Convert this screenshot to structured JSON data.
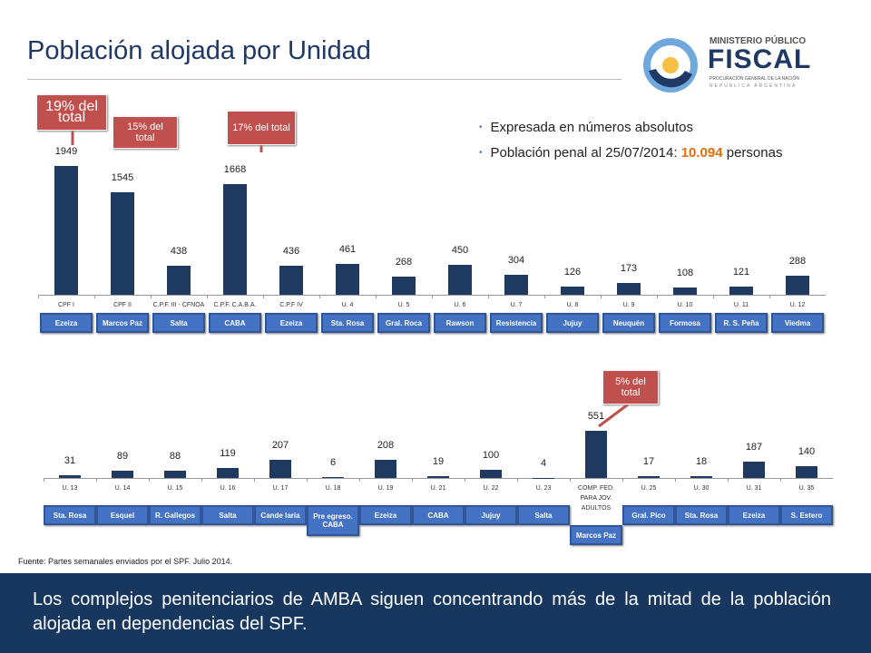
{
  "title": "Población alojada por Unidad",
  "logo": {
    "line1": "MINISTERIO PÚBLICO",
    "line2": "FISCAL",
    "line3": "PROCURACIÓN GENERAL DE LA NACIÓN",
    "line4": "REPÚBLICA ARGENTINA"
  },
  "bullets": [
    {
      "parts": [
        "Expresada en números absolutos"
      ]
    },
    {
      "parts": [
        "Población penal al 25/07/2014: ",
        "10.094",
        " personas"
      ]
    }
  ],
  "callouts": [
    "19% del total",
    "15% del total",
    "17% del total",
    "5% del total"
  ],
  "source": "Fuente: Partes semanales enviados por el SPF. Julio 2014.",
  "footer": "Los complejos penitenciarios de AMBA siguen concentrando más de la mitad de la población alojada en dependencias del SPF.",
  "chart_data": [
    {
      "type": "bar",
      "color": "#1f3a60",
      "categories": [
        "CPF I",
        "CPF II",
        "C.P.F. III - CFNOA",
        "C.P.F. C.A.B.A.",
        "C.P.F IV",
        "U. 4",
        "U. 5",
        "U. 6",
        "U. 7",
        "U. 8",
        "U. 9",
        "U. 10",
        "U. 11",
        "U. 12"
      ],
      "values": [
        1949,
        1545,
        438,
        1668,
        436,
        461,
        268,
        450,
        304,
        126,
        173,
        108,
        121,
        288
      ],
      "locations": [
        "Ezeiza",
        "Marcos Paz",
        "Salta",
        "CABA",
        "Ezeiza",
        "Sta. Rosa",
        "Gral. Roca",
        "Rawson",
        "Resistencia",
        "Jujuy",
        "Neuquén",
        "Formosa",
        "R. S. Peña",
        "Viedma"
      ]
    },
    {
      "type": "bar",
      "color": "#1f3a60",
      "categories": [
        "U. 13",
        "U. 14",
        "U. 15",
        "U. 16",
        "U. 17",
        "U. 18",
        "U. 19",
        "U. 21",
        "U. 22",
        "U. 23",
        "COMP. FED. PARA JOV. ADULTOS",
        "U. 25",
        "U. 30",
        "U. 31",
        "U. 35"
      ],
      "values": [
        31,
        89,
        88,
        119,
        207,
        6,
        208,
        19,
        100,
        4,
        551,
        17,
        18,
        187,
        140
      ],
      "locations": [
        "Sta. Rosa",
        "Esquel",
        "R. Gallegos",
        "Salta",
        "Cande laria",
        "Pre egreso. CABA",
        "Ezeiza",
        "CABA",
        "Jujuy",
        "Salta",
        "Marcos Paz",
        "Gral. Pico",
        "Sta. Rosa",
        "Ezeiza",
        "S. Estero"
      ]
    }
  ]
}
